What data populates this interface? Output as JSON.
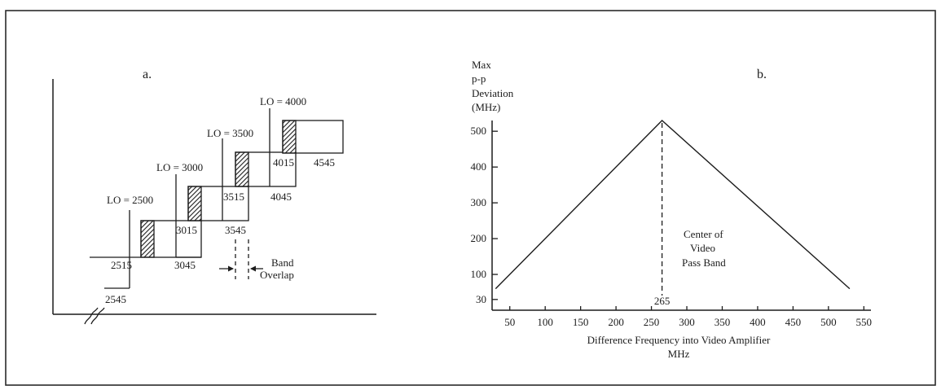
{
  "panel_a": {
    "label": "a.",
    "lo_labels": [
      "LO = 2500",
      "LO = 3000",
      "LO = 3500",
      "LO = 4000"
    ],
    "upper_values": [
      "2515",
      "3015",
      "3515",
      "4015"
    ],
    "lower_values": [
      "2545",
      "3045",
      "3545",
      "4045",
      "4545"
    ],
    "overlap_label_1": "Band",
    "overlap_label_2": "Overlap"
  },
  "chart_data": {
    "type": "line",
    "panel_label": "b.",
    "title": "",
    "ylabel_lines": [
      "Max",
      "p-p",
      "Deviation",
      "(MHz)"
    ],
    "xlabel_lines": [
      "Difference Frequency into Video Amplifier",
      "MHz"
    ],
    "x_ticks": [
      50,
      100,
      150,
      200,
      250,
      300,
      350,
      400,
      450,
      500,
      550
    ],
    "y_ticks": [
      30,
      100,
      200,
      300,
      400,
      500
    ],
    "xlim": [
      25,
      560
    ],
    "ylim": [
      0,
      530
    ],
    "grid": false,
    "series": [
      {
        "x": [
          30,
          265,
          530
        ],
        "y": [
          60,
          530,
          60
        ]
      }
    ],
    "center_marker": {
      "x": 265,
      "label": "265"
    },
    "annotation_lines": [
      "Center of",
      "Video",
      "Pass Band"
    ]
  }
}
